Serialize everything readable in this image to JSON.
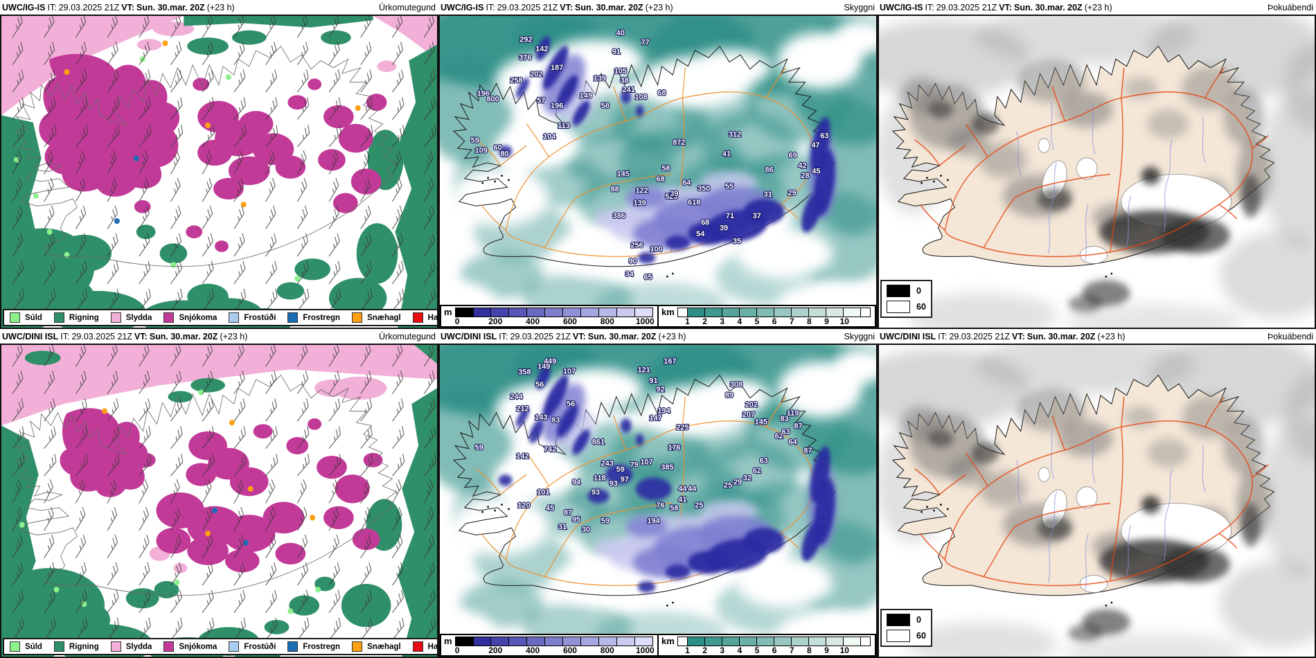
{
  "shared": {
    "it_label": "IT:",
    "it": "29.03.2025 21Z",
    "vt_label": "VT:",
    "vt": "Sun. 30.mar. 20Z",
    "lead": "(+23 h)"
  },
  "panels": [
    {
      "model": "UWC/IG-IS",
      "type": "Úrkomutegund",
      "kind": "precip",
      "variant": "a"
    },
    {
      "model": "UWC/IG-IS",
      "type": "Skyggni",
      "kind": "vis",
      "values": "vis_values_a"
    },
    {
      "model": "UWC/IG-IS",
      "type": "Þokuábendi",
      "kind": "fog"
    },
    {
      "model": "UWC/DINI ISL",
      "type": "Úrkomutegund",
      "kind": "precip",
      "variant": "b"
    },
    {
      "model": "UWC/DINI ISL",
      "type": "Skyggni",
      "kind": "vis",
      "values": "vis_values_b"
    },
    {
      "model": "UWC/DINI ISL",
      "type": "Þokuábendi",
      "kind": "fog"
    }
  ],
  "precip_legend": {
    "items": [
      {
        "label": "Súld",
        "color": "#8df08d"
      },
      {
        "label": "Rigning",
        "color": "#2f8f68"
      },
      {
        "label": "Slydda",
        "color": "#f2b0d8"
      },
      {
        "label": "Snjókoma",
        "color": "#c23a98"
      },
      {
        "label": "Frostúði",
        "color": "#aaccf0"
      },
      {
        "label": "Frostregn",
        "color": "#1a6cb4"
      },
      {
        "label": "Snæhagl",
        "color": "#ffa013"
      },
      {
        "label": "Haglél",
        "color": "#e60c12"
      }
    ]
  },
  "vis_scale": {
    "m_label": "m",
    "m_colors": [
      "#000000",
      "#32309e",
      "#4544ab",
      "#5857b7",
      "#6b6ac1",
      "#7e7ecb",
      "#9291d5",
      "#a5a5df",
      "#b8b8e8",
      "#cbcbf1",
      "#dedef9"
    ],
    "m_ticks": [
      "0",
      "200",
      "400",
      "600",
      "800",
      "1000"
    ],
    "km_label": "km",
    "km_colors": [
      "#2e8e85",
      "#40998f",
      "#55a49b",
      "#6bb0a7",
      "#81bbb3",
      "#98c7c0",
      "#aed2cc",
      "#c4ded9",
      "#dae9e5",
      "#effaf2"
    ],
    "km_ticks": [
      "1",
      "2",
      "3",
      "4",
      "5",
      "6",
      "7",
      "8",
      "9",
      "10"
    ]
  },
  "fog_legend": {
    "entries": [
      {
        "label": "0",
        "color": "#000000"
      },
      {
        "label": "60",
        "color": "#ffffff"
      }
    ]
  },
  "vis_values_a": [
    [
      125,
      36,
      "292"
    ],
    [
      148,
      49,
      "142"
    ],
    [
      124,
      61,
      "376"
    ],
    [
      170,
      75,
      "187"
    ],
    [
      140,
      84,
      "202"
    ],
    [
      111,
      93,
      "258"
    ],
    [
      63,
      111,
      "196"
    ],
    [
      77,
      119,
      "800"
    ],
    [
      147,
      121,
      "57"
    ],
    [
      170,
      128,
      "196"
    ],
    [
      180,
      156,
      "113"
    ],
    [
      159,
      171,
      "104"
    ],
    [
      51,
      176,
      "59"
    ],
    [
      84,
      186,
      "60"
    ],
    [
      94,
      195,
      "80"
    ],
    [
      60,
      190,
      "109"
    ],
    [
      262,
      27,
      "40"
    ],
    [
      256,
      53,
      "91"
    ],
    [
      298,
      40,
      "77"
    ],
    [
      262,
      80,
      "105"
    ],
    [
      268,
      93,
      "38"
    ],
    [
      274,
      106,
      "241"
    ],
    [
      292,
      116,
      "108"
    ],
    [
      322,
      110,
      "68"
    ],
    [
      232,
      90,
      "139"
    ],
    [
      212,
      114,
      "149"
    ],
    [
      240,
      128,
      "58"
    ],
    [
      347,
      179,
      "872"
    ],
    [
      428,
      168,
      "312"
    ],
    [
      416,
      195,
      "41"
    ],
    [
      328,
      215,
      "58"
    ],
    [
      320,
      230,
      "68"
    ],
    [
      266,
      223,
      "145"
    ],
    [
      254,
      244,
      "88"
    ],
    [
      293,
      246,
      "122"
    ],
    [
      336,
      254,
      "525"
    ],
    [
      290,
      263,
      "139"
    ],
    [
      383,
      243,
      "350"
    ],
    [
      369,
      262,
      "618"
    ],
    [
      420,
      240,
      "55"
    ],
    [
      478,
      217,
      "86"
    ],
    [
      476,
      251,
      "31"
    ],
    [
      511,
      249,
      "29"
    ],
    [
      558,
      170,
      "63"
    ],
    [
      545,
      183,
      "47"
    ],
    [
      512,
      197,
      "69"
    ],
    [
      526,
      211,
      "42"
    ],
    [
      546,
      219,
      "45"
    ],
    [
      530,
      225,
      "28"
    ],
    [
      460,
      281,
      "37"
    ],
    [
      421,
      281,
      "71"
    ],
    [
      385,
      290,
      "68"
    ],
    [
      412,
      298,
      "39"
    ],
    [
      378,
      306,
      "54"
    ],
    [
      431,
      316,
      "35"
    ],
    [
      260,
      281,
      "386"
    ],
    [
      286,
      322,
      "256"
    ],
    [
      314,
      327,
      "100"
    ],
    [
      280,
      344,
      "90"
    ],
    [
      275,
      362,
      "34"
    ],
    [
      302,
      366,
      "65"
    ],
    [
      358,
      235,
      "64"
    ],
    [
      340,
      250,
      "39"
    ]
  ],
  "vis_values_b": [
    [
      160,
      26,
      "449"
    ],
    [
      123,
      41,
      "358"
    ],
    [
      151,
      33,
      "149"
    ],
    [
      188,
      40,
      "107"
    ],
    [
      145,
      58,
      "56"
    ],
    [
      111,
      75,
      "244"
    ],
    [
      120,
      92,
      "212"
    ],
    [
      147,
      104,
      "143"
    ],
    [
      168,
      108,
      "83"
    ],
    [
      190,
      85,
      "56"
    ],
    [
      296,
      38,
      "121"
    ],
    [
      334,
      26,
      "167"
    ],
    [
      310,
      53,
      "91"
    ],
    [
      320,
      65,
      "92"
    ],
    [
      313,
      105,
      "147"
    ],
    [
      325,
      95,
      "194"
    ],
    [
      352,
      118,
      "225"
    ],
    [
      340,
      146,
      "176"
    ],
    [
      430,
      58,
      "308"
    ],
    [
      420,
      73,
      "89"
    ],
    [
      452,
      86,
      "202"
    ],
    [
      448,
      100,
      "207"
    ],
    [
      466,
      110,
      "145"
    ],
    [
      500,
      106,
      "83"
    ],
    [
      512,
      98,
      "119"
    ],
    [
      492,
      130,
      "62"
    ],
    [
      502,
      124,
      "63"
    ],
    [
      512,
      138,
      "64"
    ],
    [
      520,
      116,
      "87"
    ],
    [
      534,
      150,
      "87"
    ],
    [
      230,
      138,
      "861"
    ],
    [
      160,
      148,
      "742"
    ],
    [
      57,
      146,
      "59"
    ],
    [
      120,
      158,
      "142"
    ],
    [
      243,
      168,
      "243"
    ],
    [
      262,
      176,
      "59"
    ],
    [
      282,
      170,
      "79"
    ],
    [
      300,
      166,
      "107"
    ],
    [
      330,
      173,
      "385"
    ],
    [
      268,
      190,
      "97"
    ],
    [
      252,
      196,
      "93"
    ],
    [
      232,
      188,
      "118"
    ],
    [
      198,
      194,
      "94"
    ],
    [
      226,
      208,
      "93"
    ],
    [
      352,
      203,
      "44"
    ],
    [
      366,
      203,
      "44"
    ],
    [
      352,
      218,
      "41"
    ],
    [
      320,
      226,
      "76"
    ],
    [
      340,
      230,
      "58"
    ],
    [
      376,
      226,
      "25"
    ],
    [
      418,
      198,
      "25"
    ],
    [
      432,
      194,
      "29"
    ],
    [
      446,
      188,
      "32"
    ],
    [
      460,
      178,
      "62"
    ],
    [
      470,
      164,
      "63"
    ],
    [
      150,
      208,
      "101"
    ],
    [
      122,
      226,
      "120"
    ],
    [
      160,
      230,
      "45"
    ],
    [
      186,
      236,
      "87"
    ],
    [
      198,
      246,
      "95"
    ],
    [
      178,
      256,
      "31"
    ],
    [
      212,
      260,
      "30"
    ],
    [
      240,
      248,
      "59"
    ],
    [
      310,
      248,
      "194"
    ]
  ]
}
